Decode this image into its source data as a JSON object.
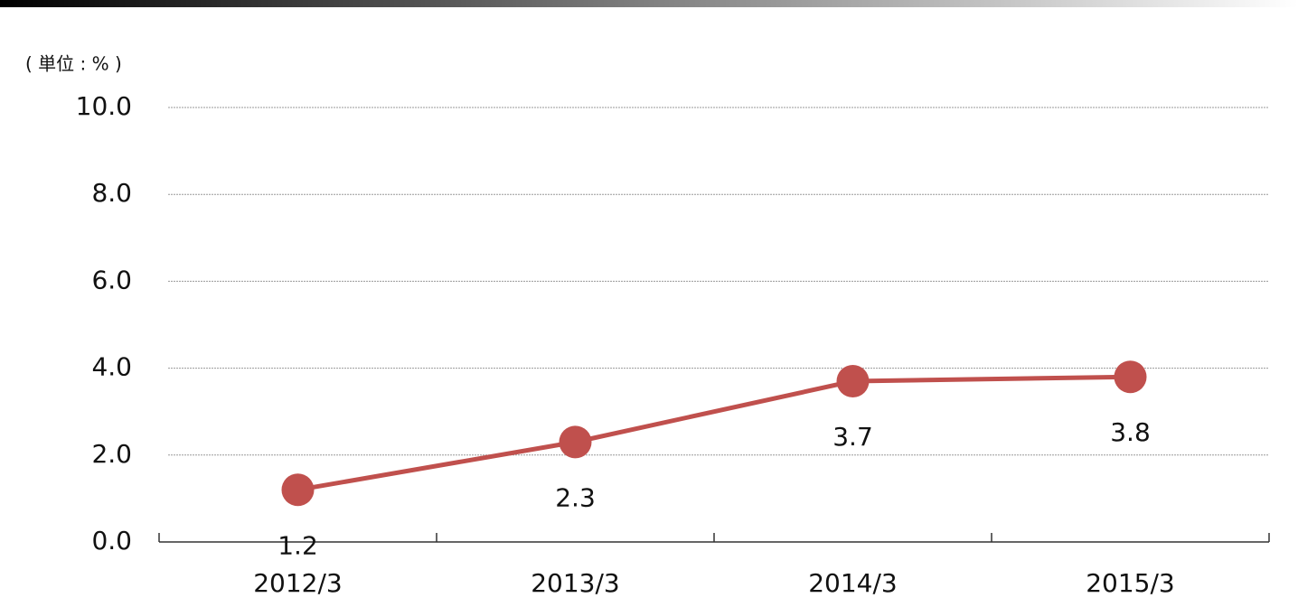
{
  "chart_data": {
    "type": "line",
    "unit_label": "( 単位 : % )",
    "categories": [
      "2012/3",
      "2013/3",
      "2014/3",
      "2015/3"
    ],
    "values": [
      1.2,
      2.3,
      3.7,
      3.8
    ],
    "color": "#c0504d",
    "ylim": [
      0,
      10
    ],
    "yticks": [
      {
        "value": 0,
        "label": "0.0"
      },
      {
        "value": 2,
        "label": "2.0"
      },
      {
        "value": 4,
        "label": "4.0"
      },
      {
        "value": 6,
        "label": "6.0"
      },
      {
        "value": 8,
        "label": "8.0"
      },
      {
        "value": 10,
        "label": "10.0"
      }
    ],
    "grid": true
  }
}
